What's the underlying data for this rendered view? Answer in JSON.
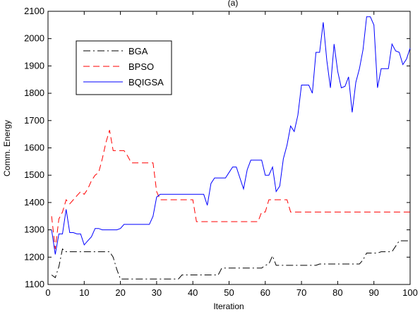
{
  "chart_data": {
    "type": "line",
    "title": "(a)",
    "xlabel": "Iteration",
    "ylabel": "Comm. Energy",
    "xlim": [
      0,
      100
    ],
    "ylim": [
      1100,
      2100
    ],
    "xticks": [
      "0",
      "10",
      "20",
      "30",
      "40",
      "50",
      "60",
      "70",
      "80",
      "90",
      "100"
    ],
    "yticks": [
      "1100",
      "1200",
      "1300",
      "1400",
      "1500",
      "1600",
      "1700",
      "1800",
      "1900",
      "2000",
      "2100"
    ],
    "grid": false,
    "legend_position": "top-left",
    "series": [
      {
        "name": "BGA",
        "color": "#000000",
        "style": "dashdot",
        "points": [
          [
            1,
            1135
          ],
          [
            2,
            1125
          ],
          [
            3,
            1165
          ],
          [
            4,
            1230
          ],
          [
            5,
            1220
          ],
          [
            6,
            1220
          ],
          [
            7,
            1220
          ],
          [
            8,
            1220
          ],
          [
            9,
            1220
          ],
          [
            10,
            1220
          ],
          [
            11,
            1220
          ],
          [
            12,
            1220
          ],
          [
            13,
            1220
          ],
          [
            14,
            1220
          ],
          [
            15,
            1220
          ],
          [
            16,
            1220
          ],
          [
            17,
            1220
          ],
          [
            18,
            1200
          ],
          [
            19,
            1155
          ],
          [
            20,
            1120
          ],
          [
            21,
            1120
          ],
          [
            22,
            1120
          ],
          [
            23,
            1120
          ],
          [
            24,
            1120
          ],
          [
            25,
            1120
          ],
          [
            26,
            1120
          ],
          [
            27,
            1120
          ],
          [
            28,
            1120
          ],
          [
            29,
            1120
          ],
          [
            30,
            1120
          ],
          [
            31,
            1120
          ],
          [
            32,
            1120
          ],
          [
            33,
            1120
          ],
          [
            34,
            1120
          ],
          [
            35,
            1120
          ],
          [
            36,
            1120
          ],
          [
            37,
            1135
          ],
          [
            38,
            1135
          ],
          [
            39,
            1135
          ],
          [
            40,
            1135
          ],
          [
            41,
            1135
          ],
          [
            42,
            1135
          ],
          [
            43,
            1135
          ],
          [
            44,
            1135
          ],
          [
            45,
            1135
          ],
          [
            46,
            1135
          ],
          [
            47,
            1135
          ],
          [
            48,
            1160
          ],
          [
            49,
            1160
          ],
          [
            50,
            1160
          ],
          [
            51,
            1160
          ],
          [
            52,
            1160
          ],
          [
            53,
            1160
          ],
          [
            54,
            1160
          ],
          [
            55,
            1160
          ],
          [
            56,
            1160
          ],
          [
            57,
            1160
          ],
          [
            58,
            1160
          ],
          [
            59,
            1160
          ],
          [
            60,
            1170
          ],
          [
            61,
            1175
          ],
          [
            62,
            1205
          ],
          [
            63,
            1170
          ],
          [
            64,
            1170
          ],
          [
            65,
            1170
          ],
          [
            66,
            1170
          ],
          [
            67,
            1170
          ],
          [
            68,
            1170
          ],
          [
            69,
            1170
          ],
          [
            70,
            1170
          ],
          [
            71,
            1170
          ],
          [
            72,
            1170
          ],
          [
            73,
            1170
          ],
          [
            74,
            1170
          ],
          [
            75,
            1175
          ],
          [
            76,
            1175
          ],
          [
            77,
            1175
          ],
          [
            78,
            1175
          ],
          [
            79,
            1175
          ],
          [
            80,
            1175
          ],
          [
            81,
            1175
          ],
          [
            82,
            1175
          ],
          [
            83,
            1175
          ],
          [
            84,
            1175
          ],
          [
            85,
            1175
          ],
          [
            86,
            1175
          ],
          [
            87,
            1190
          ],
          [
            88,
            1215
          ],
          [
            89,
            1215
          ],
          [
            90,
            1215
          ],
          [
            91,
            1215
          ],
          [
            92,
            1220
          ],
          [
            93,
            1220
          ],
          [
            94,
            1220
          ],
          [
            95,
            1220
          ],
          [
            96,
            1240
          ],
          [
            97,
            1260
          ],
          [
            98,
            1260
          ],
          [
            99,
            1260
          ],
          [
            100,
            1260
          ]
        ]
      },
      {
        "name": "BPSO",
        "color": "#ff0000",
        "style": "dashed",
        "points": [
          [
            1,
            1350
          ],
          [
            2,
            1230
          ],
          [
            3,
            1340
          ],
          [
            4,
            1365
          ],
          [
            5,
            1410
          ],
          [
            6,
            1395
          ],
          [
            7,
            1410
          ],
          [
            8,
            1425
          ],
          [
            9,
            1440
          ],
          [
            10,
            1430
          ],
          [
            11,
            1450
          ],
          [
            12,
            1480
          ],
          [
            13,
            1500
          ],
          [
            14,
            1510
          ],
          [
            15,
            1560
          ],
          [
            16,
            1620
          ],
          [
            17,
            1665
          ],
          [
            18,
            1590
          ],
          [
            19,
            1590
          ],
          [
            20,
            1590
          ],
          [
            21,
            1590
          ],
          [
            22,
            1570
          ],
          [
            23,
            1545
          ],
          [
            24,
            1545
          ],
          [
            25,
            1545
          ],
          [
            26,
            1545
          ],
          [
            27,
            1545
          ],
          [
            28,
            1545
          ],
          [
            29,
            1545
          ],
          [
            30,
            1440
          ],
          [
            31,
            1410
          ],
          [
            32,
            1410
          ],
          [
            33,
            1410
          ],
          [
            34,
            1410
          ],
          [
            35,
            1410
          ],
          [
            36,
            1410
          ],
          [
            37,
            1410
          ],
          [
            38,
            1410
          ],
          [
            39,
            1410
          ],
          [
            40,
            1410
          ],
          [
            41,
            1330
          ],
          [
            42,
            1330
          ],
          [
            43,
            1330
          ],
          [
            44,
            1330
          ],
          [
            45,
            1330
          ],
          [
            46,
            1330
          ],
          [
            47,
            1330
          ],
          [
            48,
            1330
          ],
          [
            49,
            1330
          ],
          [
            50,
            1330
          ],
          [
            51,
            1330
          ],
          [
            52,
            1330
          ],
          [
            53,
            1330
          ],
          [
            54,
            1330
          ],
          [
            55,
            1330
          ],
          [
            56,
            1330
          ],
          [
            57,
            1330
          ],
          [
            58,
            1330
          ],
          [
            59,
            1365
          ],
          [
            60,
            1365
          ],
          [
            61,
            1410
          ],
          [
            62,
            1410
          ],
          [
            63,
            1410
          ],
          [
            64,
            1410
          ],
          [
            65,
            1410
          ],
          [
            66,
            1410
          ],
          [
            67,
            1365
          ],
          [
            68,
            1365
          ],
          [
            69,
            1365
          ],
          [
            70,
            1365
          ],
          [
            71,
            1365
          ],
          [
            72,
            1365
          ],
          [
            73,
            1365
          ],
          [
            74,
            1365
          ],
          [
            75,
            1365
          ],
          [
            76,
            1365
          ],
          [
            77,
            1365
          ],
          [
            78,
            1365
          ],
          [
            79,
            1365
          ],
          [
            80,
            1365
          ],
          [
            81,
            1365
          ],
          [
            82,
            1365
          ],
          [
            83,
            1365
          ],
          [
            84,
            1365
          ],
          [
            85,
            1365
          ],
          [
            86,
            1365
          ],
          [
            87,
            1365
          ],
          [
            88,
            1365
          ],
          [
            89,
            1365
          ],
          [
            90,
            1365
          ],
          [
            91,
            1365
          ],
          [
            92,
            1365
          ],
          [
            93,
            1365
          ],
          [
            94,
            1365
          ],
          [
            95,
            1365
          ],
          [
            96,
            1365
          ],
          [
            97,
            1365
          ],
          [
            98,
            1365
          ],
          [
            99,
            1365
          ],
          [
            100,
            1365
          ]
        ]
      },
      {
        "name": "BQIGSA",
        "color": "#0000ff",
        "style": "solid",
        "points": [
          [
            1,
            1300
          ],
          [
            2,
            1210
          ],
          [
            3,
            1285
          ],
          [
            4,
            1285
          ],
          [
            5,
            1375
          ],
          [
            6,
            1290
          ],
          [
            7,
            1290
          ],
          [
            8,
            1285
          ],
          [
            9,
            1285
          ],
          [
            10,
            1245
          ],
          [
            11,
            1260
          ],
          [
            12,
            1275
          ],
          [
            13,
            1305
          ],
          [
            14,
            1305
          ],
          [
            15,
            1300
          ],
          [
            16,
            1300
          ],
          [
            17,
            1300
          ],
          [
            18,
            1300
          ],
          [
            19,
            1300
          ],
          [
            20,
            1305
          ],
          [
            21,
            1320
          ],
          [
            22,
            1320
          ],
          [
            23,
            1320
          ],
          [
            24,
            1320
          ],
          [
            25,
            1320
          ],
          [
            26,
            1320
          ],
          [
            27,
            1320
          ],
          [
            28,
            1320
          ],
          [
            29,
            1350
          ],
          [
            30,
            1420
          ],
          [
            31,
            1430
          ],
          [
            32,
            1430
          ],
          [
            33,
            1430
          ],
          [
            34,
            1430
          ],
          [
            35,
            1430
          ],
          [
            36,
            1430
          ],
          [
            37,
            1430
          ],
          [
            38,
            1430
          ],
          [
            39,
            1430
          ],
          [
            40,
            1430
          ],
          [
            41,
            1430
          ],
          [
            42,
            1430
          ],
          [
            43,
            1430
          ],
          [
            44,
            1390
          ],
          [
            45,
            1470
          ],
          [
            46,
            1490
          ],
          [
            47,
            1490
          ],
          [
            48,
            1490
          ],
          [
            49,
            1490
          ],
          [
            50,
            1510
          ],
          [
            51,
            1530
          ],
          [
            52,
            1530
          ],
          [
            53,
            1490
          ],
          [
            54,
            1450
          ],
          [
            55,
            1520
          ],
          [
            56,
            1555
          ],
          [
            57,
            1555
          ],
          [
            58,
            1555
          ],
          [
            59,
            1555
          ],
          [
            60,
            1500
          ],
          [
            61,
            1500
          ],
          [
            62,
            1530
          ],
          [
            63,
            1440
          ],
          [
            64,
            1460
          ],
          [
            65,
            1560
          ],
          [
            66,
            1610
          ],
          [
            67,
            1680
          ],
          [
            68,
            1660
          ],
          [
            69,
            1720
          ],
          [
            70,
            1830
          ],
          [
            71,
            1830
          ],
          [
            72,
            1830
          ],
          [
            73,
            1800
          ],
          [
            74,
            1950
          ],
          [
            75,
            1950
          ],
          [
            76,
            2060
          ],
          [
            77,
            1920
          ],
          [
            78,
            1820
          ],
          [
            79,
            1980
          ],
          [
            80,
            1880
          ],
          [
            81,
            1820
          ],
          [
            82,
            1825
          ],
          [
            83,
            1860
          ],
          [
            84,
            1730
          ],
          [
            85,
            1840
          ],
          [
            86,
            1890
          ],
          [
            87,
            1960
          ],
          [
            88,
            2080
          ],
          [
            89,
            2080
          ],
          [
            90,
            2050
          ],
          [
            91,
            1820
          ],
          [
            92,
            1890
          ],
          [
            93,
            1890
          ],
          [
            94,
            1890
          ],
          [
            95,
            1980
          ],
          [
            96,
            1955
          ],
          [
            97,
            1950
          ],
          [
            98,
            1905
          ],
          [
            99,
            1925
          ],
          [
            100,
            1965
          ]
        ]
      }
    ]
  }
}
